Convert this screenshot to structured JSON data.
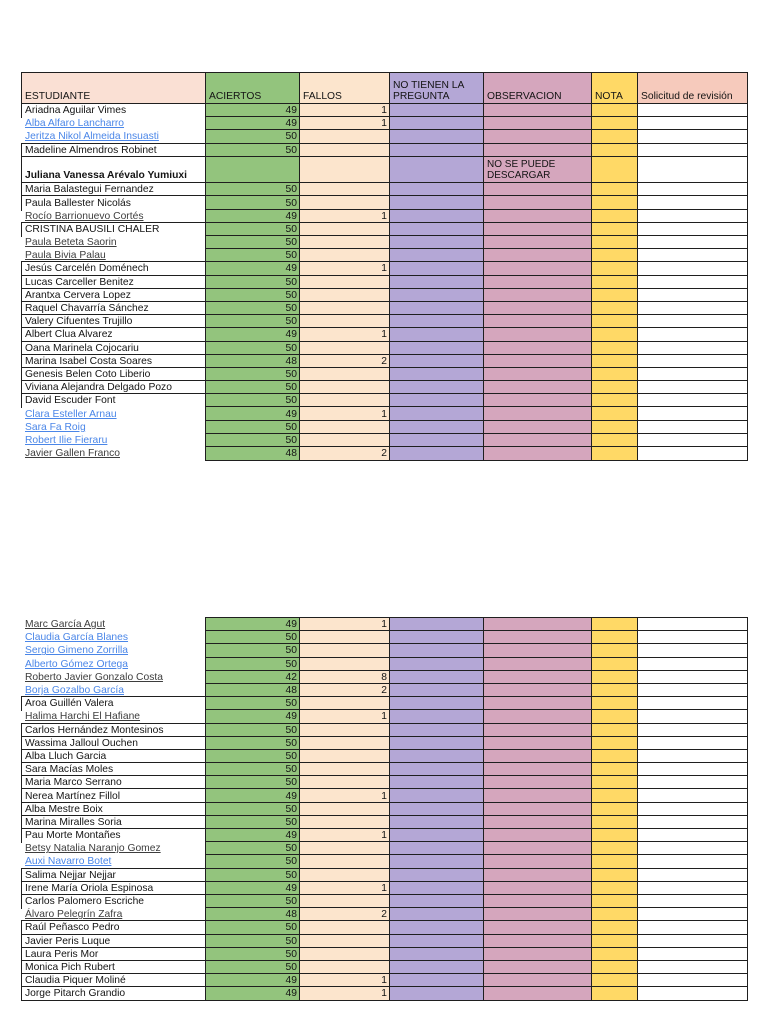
{
  "colors": {
    "aciertos_fill": "#93c47d",
    "fallos_fill": "#fce5cd",
    "pregunta_fill": "#b4a7d6",
    "observacion_fill": "#d5a6bd",
    "nota_fill": "#ffd966",
    "estudiante_header_fill": "#fae0d4",
    "solicitud_header_fill": "#f6cabc",
    "link_blue": "#4a86e8",
    "border": "#1f1f1f"
  },
  "columns": [
    {
      "key": "estudiante",
      "label": "ESTUDIANTE"
    },
    {
      "key": "aciertos",
      "label": "ACIERTOS"
    },
    {
      "key": "fallos",
      "label": "FALLOS"
    },
    {
      "key": "pregunta",
      "label": "NO TIENEN LA PREGUNTA"
    },
    {
      "key": "observacion",
      "label": "OBSERVACION"
    },
    {
      "key": "nota",
      "label": "NOTA"
    },
    {
      "key": "solicitud",
      "label": "Solicitud de revisión"
    }
  ],
  "tables": [
    {
      "show_header": true,
      "rows": [
        {
          "name": "Ariadna Aguilar Vimes",
          "style": "plain",
          "aciertos": 49,
          "fallos": 1
        },
        {
          "name": "Alba Alfaro Lancharro",
          "style": "link-blue",
          "aciertos": 49,
          "fallos": 1
        },
        {
          "name": "Jeritza Nikol Almeida Insuasti",
          "style": "link-blue",
          "aciertos": 50
        },
        {
          "name": "Madeline Almendros Robinet",
          "style": "plain",
          "aciertos": 50
        },
        {
          "name": "Juliana Vanessa Arévalo Yumiuxi",
          "style": "bold",
          "observacion": "NO SE PUEDE DESCARGAR",
          "tall": true
        },
        {
          "name": "Maria Balastegui Fernandez",
          "style": "plain",
          "aciertos": 50
        },
        {
          "name": "Paula Ballester Nicolás",
          "style": "plain",
          "aciertos": 50
        },
        {
          "name": "Rocío Barrionuevo Cortés",
          "style": "link-dark",
          "aciertos": 49,
          "fallos": 1
        },
        {
          "name": "CRISTINA BAUSILI CHALER",
          "style": "plain",
          "aciertos": 50
        },
        {
          "name": "Paula Beteta Saorin",
          "style": "link-dark",
          "aciertos": 50
        },
        {
          "name": "Paula Bivia Palau",
          "style": "link-dark",
          "aciertos": 50
        },
        {
          "name": "Jesús Carcelén Doménech",
          "style": "plain",
          "aciertos": 49,
          "fallos": 1
        },
        {
          "name": "Lucas Carceller Benitez",
          "style": "plain",
          "aciertos": 50
        },
        {
          "name": "Arantxa Cervera Lopez",
          "style": "plain",
          "aciertos": 50
        },
        {
          "name": "Raquel Chavarría Sánchez",
          "style": "plain",
          "aciertos": 50
        },
        {
          "name": "Valery Cifuentes Trujillo",
          "style": "plain",
          "aciertos": 50
        },
        {
          "name": "Albert Clua Alvarez",
          "style": "plain",
          "aciertos": 49,
          "fallos": 1
        },
        {
          "name": "Oana Marinela Cojocariu",
          "style": "plain",
          "aciertos": 50
        },
        {
          "name": "Marina Isabel Costa Soares",
          "style": "plain",
          "aciertos": 48,
          "fallos": 2
        },
        {
          "name": "Genesis Belen Coto Liberio",
          "style": "plain",
          "aciertos": 50
        },
        {
          "name": "Viviana Alejandra Delgado Pozo",
          "style": "plain",
          "aciertos": 50
        },
        {
          "name": "David Escuder Font",
          "style": "plain",
          "aciertos": 50
        },
        {
          "name": "Clara Esteller Arnau",
          "style": "link-blue",
          "aciertos": 49,
          "fallos": 1
        },
        {
          "name": "Sara Fa Roig",
          "style": "link-blue",
          "aciertos": 50
        },
        {
          "name": "Robert Ilie Fieraru",
          "style": "link-blue",
          "aciertos": 50
        },
        {
          "name": "Javier Gallen Franco",
          "style": "link-dark",
          "aciertos": 48,
          "fallos": 2
        }
      ]
    },
    {
      "show_header": false,
      "rows": [
        {
          "name": "Marc García Agut",
          "style": "link-dark",
          "aciertos": 49,
          "fallos": 1
        },
        {
          "name": "Claudia García Blanes",
          "style": "link-blue",
          "aciertos": 50
        },
        {
          "name": "Sergio Gimeno Zorrilla",
          "style": "link-blue",
          "aciertos": 50
        },
        {
          "name": "Alberto Gómez Ortega",
          "style": "link-blue",
          "aciertos": 50
        },
        {
          "name": "Roberto Javier Gonzalo Costa",
          "style": "link-dark",
          "aciertos": 42,
          "fallos": 8
        },
        {
          "name": "Borja Gozalbo García",
          "style": "link-blue",
          "aciertos": 48,
          "fallos": 2
        },
        {
          "name": "Aroa Guillén Valera",
          "style": "plain",
          "aciertos": 50
        },
        {
          "name": "Halima Harchi El Hafiane",
          "style": "link-dark",
          "aciertos": 49,
          "fallos": 1
        },
        {
          "name": "Carlos Hernández Montesinos",
          "style": "plain",
          "aciertos": 50
        },
        {
          "name": "Wassima Jalloul Ouchen",
          "style": "plain",
          "aciertos": 50
        },
        {
          "name": "Alba Lluch Garcia",
          "style": "plain",
          "aciertos": 50
        },
        {
          "name": "Sara Macías Moles",
          "style": "plain",
          "aciertos": 50
        },
        {
          "name": "Maria Marco Serrano",
          "style": "plain",
          "aciertos": 50
        },
        {
          "name": "Nerea Martínez Fillol",
          "style": "plain",
          "aciertos": 49,
          "fallos": 1
        },
        {
          "name": "Alba Mestre Boix",
          "style": "plain",
          "aciertos": 50
        },
        {
          "name": "Marina Miralles Soria",
          "style": "plain",
          "aciertos": 50
        },
        {
          "name": "Pau Morte Montañes",
          "style": "plain",
          "aciertos": 49,
          "fallos": 1
        },
        {
          "name": "Betsy Natalia Naranjo Gomez",
          "style": "link-dark",
          "aciertos": 50
        },
        {
          "name": "Auxi Navarro Botet",
          "style": "link-blue",
          "aciertos": 50
        },
        {
          "name": "Salima Nejjar Nejjar",
          "style": "plain",
          "aciertos": 50
        },
        {
          "name": "Irene María Oriola Espinosa",
          "style": "plain",
          "aciertos": 49,
          "fallos": 1
        },
        {
          "name": "Carlos Palomero Escriche",
          "style": "plain",
          "aciertos": 50
        },
        {
          "name": "Álvaro Pelegrín Zafra",
          "style": "link-dark",
          "aciertos": 48,
          "fallos": 2
        },
        {
          "name": "Raúl Peñasco Pedro",
          "style": "plain",
          "aciertos": 50
        },
        {
          "name": "Javier Peris Luque",
          "style": "plain",
          "aciertos": 50
        },
        {
          "name": "Laura Peris Mor",
          "style": "plain",
          "aciertos": 50
        },
        {
          "name": "Monica Pich Rubert",
          "style": "plain",
          "aciertos": 50
        },
        {
          "name": "Claudia Piquer Moliné",
          "style": "plain",
          "aciertos": 49,
          "fallos": 1
        },
        {
          "name": "Jorge Pitarch Grandio",
          "style": "plain",
          "aciertos": 49,
          "fallos": 1
        }
      ]
    }
  ]
}
